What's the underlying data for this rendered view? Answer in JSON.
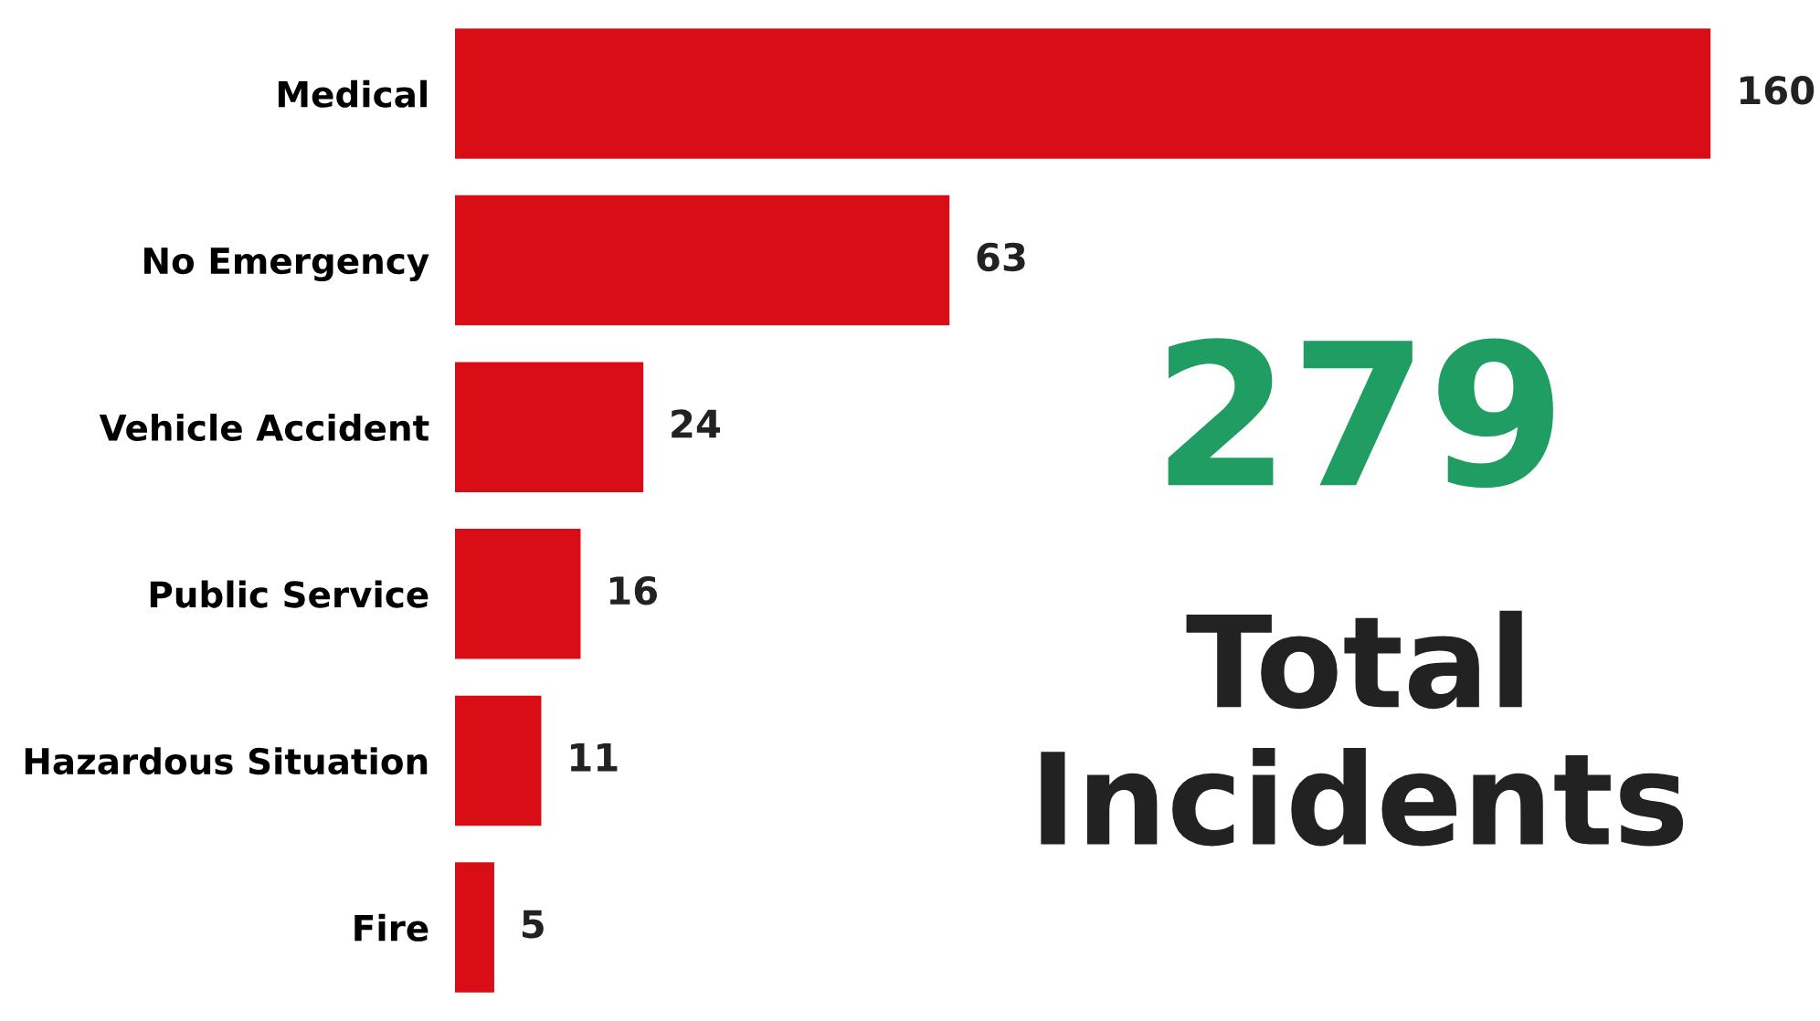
{
  "chart_data": {
    "type": "bar",
    "orientation": "horizontal",
    "categories": [
      "Medical",
      "No Emergency",
      "Vehicle Accident",
      "Public Service",
      "Hazardous Situation",
      "Fire"
    ],
    "values": [
      160,
      63,
      24,
      16,
      11,
      5
    ],
    "color": "#d90d15",
    "data_labels": true,
    "tick_labels": "y",
    "grid": false,
    "legend": false,
    "annotations": [
      "279",
      "Total\nIncidents"
    ]
  }
}
